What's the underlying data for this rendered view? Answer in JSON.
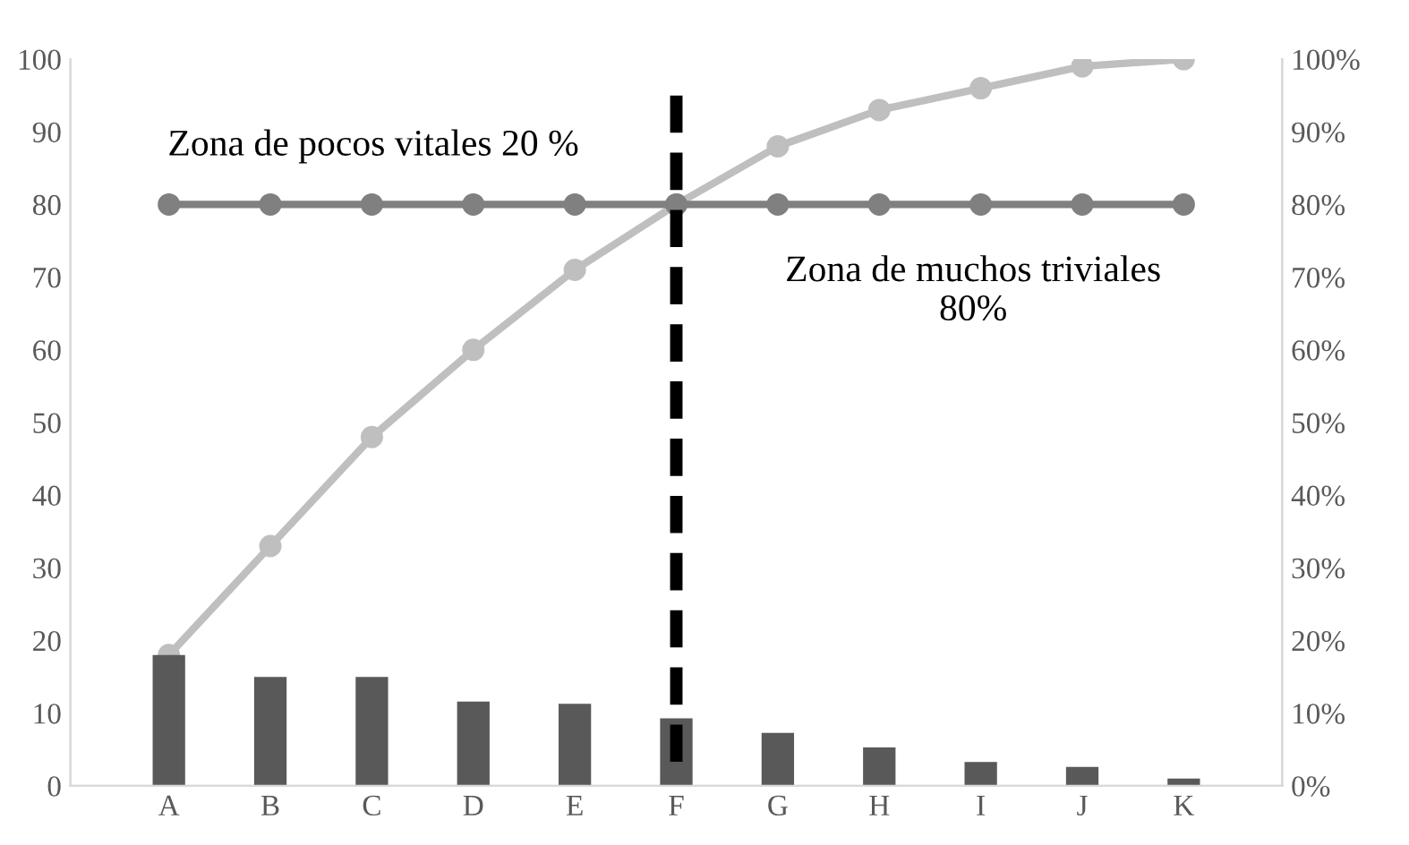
{
  "chart_data": {
    "type": "bar",
    "categories": [
      "A",
      "B",
      "C",
      "D",
      "E",
      "F",
      "G",
      "H",
      "I",
      "J",
      "K"
    ],
    "series": [
      {
        "color": "#595959",
        "values": [
          18,
          15,
          15,
          11.6,
          11.3,
          9.3,
          7.3,
          5.3,
          3.3,
          2.6,
          1.0
        ]
      },
      {
        "type": "line",
        "axis": "y2",
        "color": "#bfbfbf",
        "marker": "circle",
        "values": [
          18,
          33,
          48,
          60,
          71,
          80,
          88,
          93,
          96,
          99,
          100
        ]
      },
      {
        "type": "line",
        "axis": "y2",
        "color": "#808080",
        "marker": "circle",
        "values": [
          80,
          80,
          80,
          80,
          80,
          80,
          80,
          80,
          80,
          80,
          80
        ]
      },
      {
        "type": "line",
        "color": "#000000",
        "marker": "none",
        "line_style": "dashed",
        "x": [
          "F",
          "F"
        ],
        "values": [
          95,
          3
        ]
      }
    ],
    "ylim": [
      0,
      100
    ],
    "yticks": [
      0,
      10,
      20,
      30,
      40,
      50,
      60,
      70,
      80,
      90,
      100
    ],
    "y2lim": [
      0,
      100
    ],
    "y2ticks": [
      {
        "value": 0,
        "label": "0%"
      },
      {
        "value": 10,
        "label": "10%"
      },
      {
        "value": 20,
        "label": "20%"
      },
      {
        "value": 30,
        "label": "30%"
      },
      {
        "value": 40,
        "label": "40%"
      },
      {
        "value": 50,
        "label": "50%"
      },
      {
        "value": 60,
        "label": "60%"
      },
      {
        "value": 70,
        "label": "70%"
      },
      {
        "value": 80,
        "label": "80%"
      },
      {
        "value": 90,
        "label": "90%"
      },
      {
        "value": 100,
        "label": "100%"
      }
    ],
    "grid": false,
    "legend": false,
    "annotations": [
      "Zona de pocos vitales 20 %",
      "Zona de muchos triviales\n80%"
    ]
  }
}
